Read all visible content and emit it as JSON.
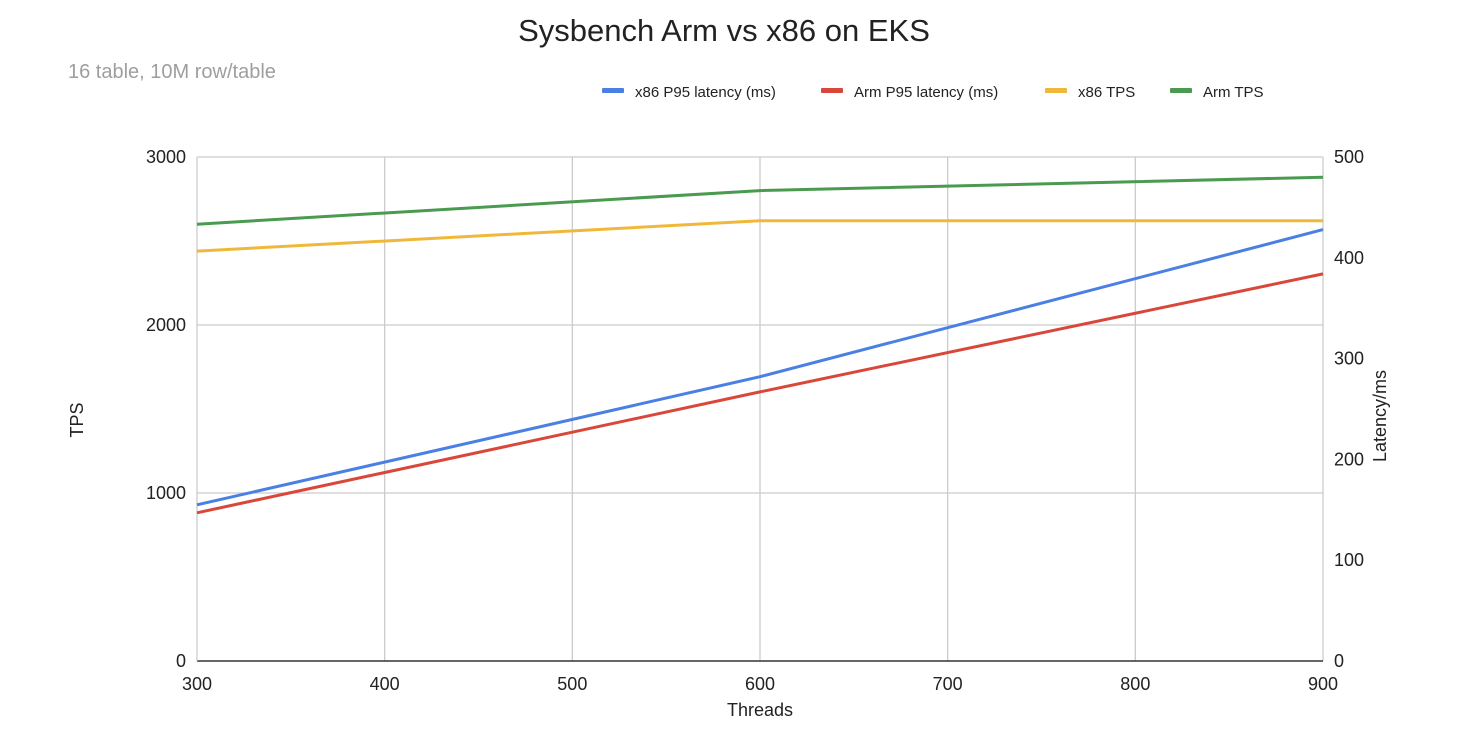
{
  "chart_data": {
    "type": "line",
    "title": "Sysbench Arm vs x86 on EKS",
    "subtitle": "16 table, 10M row/table",
    "xlabel": "Threads",
    "ylabel_left": "TPS",
    "ylabel_right": "Latency/ms",
    "xlim": [
      300,
      900
    ],
    "ylim_left": [
      0,
      3000
    ],
    "ylim_right": [
      0,
      500
    ],
    "x_ticks": [
      300,
      400,
      500,
      600,
      700,
      800,
      900
    ],
    "y_left_ticks": [
      0,
      1000,
      2000,
      3000
    ],
    "y_right_ticks": [
      0,
      100,
      200,
      300,
      400,
      500
    ],
    "grid": true,
    "legend_position": "top-right",
    "series": [
      {
        "name": "x86 P95 latency (ms)",
        "axis": "right",
        "color": "#4a7fe3",
        "x": [
          300,
          600,
          900
        ],
        "y": [
          155,
          282,
          428
        ]
      },
      {
        "name": "Arm P95 latency (ms)",
        "axis": "right",
        "color": "#d9473a",
        "x": [
          300,
          600,
          900
        ],
        "y": [
          147,
          267,
          384
        ]
      },
      {
        "name": "x86 TPS",
        "axis": "left",
        "color": "#f0b83a",
        "x": [
          300,
          600,
          900
        ],
        "y": [
          2440,
          2620,
          2620
        ]
      },
      {
        "name": "Arm TPS",
        "axis": "left",
        "color": "#4a9a50",
        "x": [
          300,
          600,
          900
        ],
        "y": [
          2600,
          2800,
          2880
        ]
      }
    ]
  }
}
